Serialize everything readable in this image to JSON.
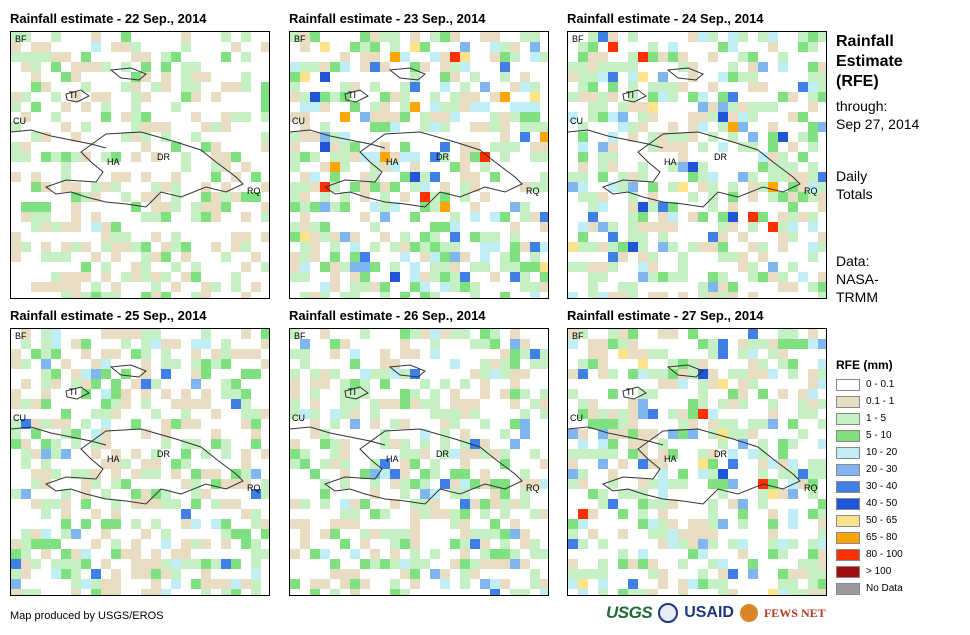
{
  "panels": [
    {
      "id": "p1",
      "title": "Rainfall estimate - 22 Sep., 2014",
      "labels": [
        "BF",
        "TI",
        "CU",
        "HA",
        "DR",
        "RQ"
      ],
      "intensity": "low"
    },
    {
      "id": "p2",
      "title": "Rainfall estimate - 23 Sep., 2014",
      "labels": [
        "BF",
        "TI",
        "CU",
        "HA",
        "DR",
        "RQ"
      ],
      "intensity": "high"
    },
    {
      "id": "p3",
      "title": "Rainfall estimate - 24 Sep., 2014",
      "labels": [
        "BF",
        "TI",
        "CU",
        "HA",
        "DR",
        "RQ"
      ],
      "intensity": "high"
    },
    {
      "id": "p4",
      "title": "Rainfall estimate - 25 Sep., 2014",
      "labels": [
        "BF",
        "TI",
        "CU",
        "HA",
        "DR",
        "RQ"
      ],
      "intensity": "medium"
    },
    {
      "id": "p5",
      "title": "Rainfall estimate - 26 Sep., 2014",
      "labels": [
        "BF",
        "TI",
        "CU",
        "HA",
        "DR",
        "RQ"
      ],
      "intensity": "medium"
    },
    {
      "id": "p6",
      "title": "Rainfall estimate - 27 Sep., 2014",
      "labels": [
        "BF",
        "TI",
        "CU",
        "HA",
        "DR",
        "RQ"
      ],
      "intensity": "high"
    }
  ],
  "side": {
    "title_l1": "Rainfall",
    "title_l2": "Estimate",
    "title_l3": "(RFE)",
    "through_l1": "through:",
    "through_l2": "Sep 27, 2014",
    "daily_l1": "Daily",
    "daily_l2": "Totals",
    "data_l1": "Data:",
    "data_l2": "NASA-",
    "data_l3": "TRMM"
  },
  "legend": {
    "title": "RFE (mm)",
    "items": [
      {
        "label": "0 - 0.1",
        "color": "#ffffff"
      },
      {
        "label": "0.1 - 1",
        "color": "#e8dcc2"
      },
      {
        "label": "1 - 5",
        "color": "#c4f0c4"
      },
      {
        "label": "5 - 10",
        "color": "#7fe07f"
      },
      {
        "label": "10 - 20",
        "color": "#bfeff5"
      },
      {
        "label": "20 - 30",
        "color": "#7fb6f0"
      },
      {
        "label": "30 - 40",
        "color": "#3f7fe6"
      },
      {
        "label": "40 - 50",
        "color": "#1f55d6"
      },
      {
        "label": "50 - 65",
        "color": "#ffe38a"
      },
      {
        "label": "65 - 80",
        "color": "#ffa500"
      },
      {
        "label": "80 - 100",
        "color": "#ff3000"
      },
      {
        "label": "> 100",
        "color": "#a01010"
      },
      {
        "label": "No Data",
        "color": "#9a9a9a"
      }
    ]
  },
  "footer": {
    "credit": "Map produced by USGS/EROS",
    "logo_usgs": "USGS",
    "logo_usaid": "USAID",
    "logo_fews": "FEWS NET"
  }
}
